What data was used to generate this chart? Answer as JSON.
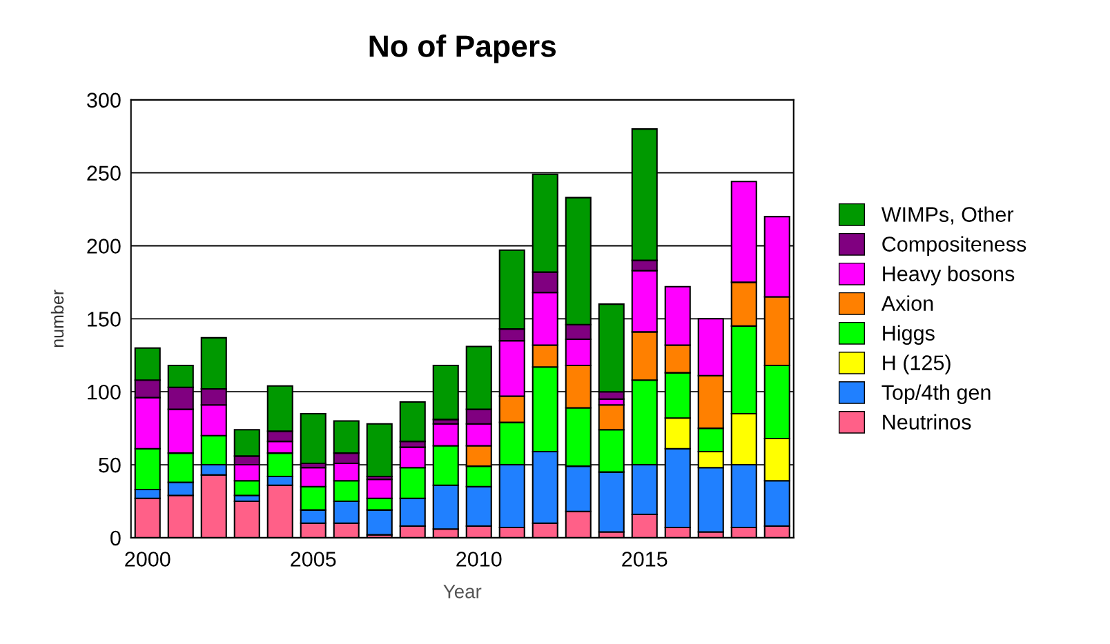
{
  "chart_data": {
    "type": "bar",
    "title": "No of Papers",
    "xlabel": "Year",
    "ylabel": "number",
    "stacked": true,
    "x": [
      2000,
      2001,
      2002,
      2003,
      2004,
      2005,
      2006,
      2007,
      2008,
      2009,
      2010,
      2011,
      2012,
      2013,
      2014,
      2015,
      2016,
      2017,
      2018,
      2019
    ],
    "xlim": [
      1999.5,
      2019.5
    ],
    "xticks": [
      2000,
      2005,
      2010,
      2015
    ],
    "ylim": [
      0,
      300
    ],
    "yticks": [
      0,
      50,
      100,
      150,
      200,
      250,
      300
    ],
    "grid": "y",
    "legend": "right",
    "series": [
      {
        "name": "Neutrinos",
        "color": "#ff6088",
        "values": [
          27,
          29,
          43,
          25,
          36,
          10,
          10,
          2,
          8,
          6,
          8,
          7,
          10,
          18,
          4,
          16,
          7,
          4,
          7,
          8
        ]
      },
      {
        "name": "Top/4th gen",
        "color": "#2080ff",
        "values": [
          6,
          9,
          7,
          4,
          6,
          9,
          15,
          17,
          19,
          30,
          27,
          43,
          49,
          31,
          41,
          34,
          54,
          44,
          43,
          31
        ]
      },
      {
        "name": "H (125)",
        "color": "#ffff00",
        "values": [
          null,
          null,
          null,
          null,
          null,
          null,
          null,
          null,
          null,
          null,
          null,
          null,
          null,
          null,
          null,
          null,
          21,
          11,
          35,
          29
        ]
      },
      {
        "name": "Higgs",
        "color": "#00ff00",
        "values": [
          28,
          20,
          20,
          10,
          16,
          16,
          14,
          8,
          21,
          27,
          14,
          29,
          58,
          40,
          29,
          58,
          31,
          16,
          60,
          50
        ]
      },
      {
        "name": "Axion",
        "color": "#ff8000",
        "values": [
          null,
          null,
          null,
          null,
          null,
          null,
          null,
          null,
          null,
          null,
          14,
          18,
          15,
          29,
          17,
          33,
          19,
          36,
          30,
          47
        ]
      },
      {
        "name": "Heavy bosons",
        "color": "#ff00ff",
        "values": [
          35,
          30,
          21,
          11,
          8,
          13,
          12,
          13,
          14,
          15,
          15,
          38,
          36,
          18,
          4,
          42,
          40,
          39,
          69,
          55
        ]
      },
      {
        "name": "Compositeness",
        "color": "#800080",
        "values": [
          12,
          15,
          11,
          6,
          7,
          3,
          7,
          2,
          4,
          3,
          10,
          8,
          14,
          10,
          5,
          7,
          null,
          null,
          null,
          null
        ]
      },
      {
        "name": "WIMPs, Other",
        "color": "#009900",
        "values": [
          22,
          15,
          35,
          18,
          31,
          34,
          22,
          36,
          27,
          37,
          43,
          54,
          67,
          87,
          60,
          90,
          null,
          null,
          null,
          null
        ]
      }
    ]
  }
}
